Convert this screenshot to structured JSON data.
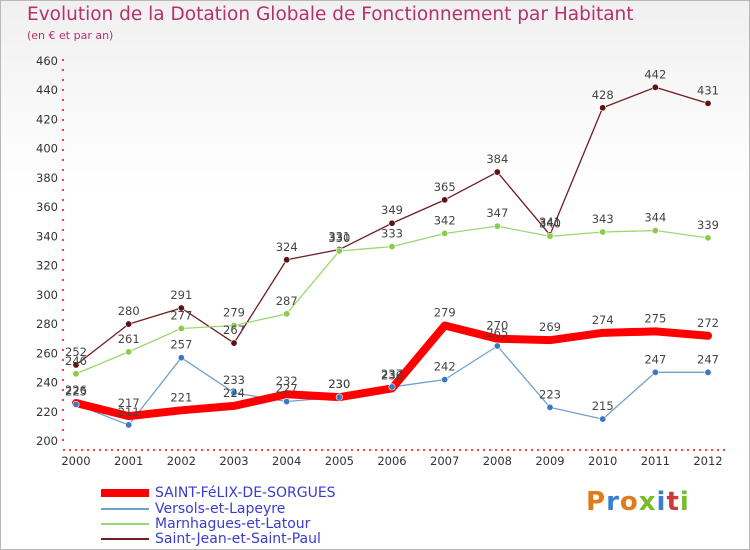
{
  "title": "Evolution de la Dotation Globale de Fonctionnement par Habitant",
  "subtitle": "(en € et par an)",
  "logo": {
    "text": "Proxiti",
    "colors": [
      "#e07b1a",
      "#3a7fcf",
      "#e07b1a",
      "#7bbb2a",
      "#3a7fcf",
      "#c83c3c",
      "#7bbb2a"
    ]
  },
  "chart_data": {
    "type": "line",
    "x": [
      "2000",
      "2001",
      "2002",
      "2003",
      "2004",
      "2005",
      "2006",
      "2007",
      "2008",
      "2009",
      "2010",
      "2011",
      "2012"
    ],
    "ylim": [
      200,
      460
    ],
    "yticks": [
      200,
      220,
      240,
      260,
      280,
      300,
      320,
      340,
      360,
      380,
      400,
      420,
      440,
      460
    ],
    "grid": false,
    "legend_position": "bottom-left",
    "series": [
      {
        "name": "Saint-Jean-et-Saint-Paul",
        "color": "#6e1d22",
        "marker": "#5a1418",
        "width": 1.3,
        "values": [
          252,
          280,
          291,
          267,
          324,
          331,
          349,
          365,
          384,
          341,
          428,
          442,
          431
        ]
      },
      {
        "name": "Marnhagues-et-Latour",
        "color": "#9ad870",
        "marker": "#8acb4e",
        "width": 1.3,
        "values": [
          246,
          261,
          277,
          279,
          287,
          330,
          333,
          342,
          347,
          340,
          343,
          344,
          339
        ]
      },
      {
        "name": "Versols-et-Lapeyre",
        "color": "#6fa0cf",
        "marker": "#3b78bf",
        "width": 1.3,
        "values": [
          225,
          211,
          257,
          233,
          227,
          230,
          237,
          242,
          265,
          223,
          215,
          247,
          247
        ]
      },
      {
        "name": "SAINT-FéLIX-DE-SORGUES",
        "color": "#ff0000",
        "marker": "#ff0000",
        "width": 8,
        "values": [
          226,
          217,
          221,
          224,
          232,
          230,
          236,
          279,
          270,
          269,
          274,
          275,
          272
        ]
      }
    ]
  }
}
